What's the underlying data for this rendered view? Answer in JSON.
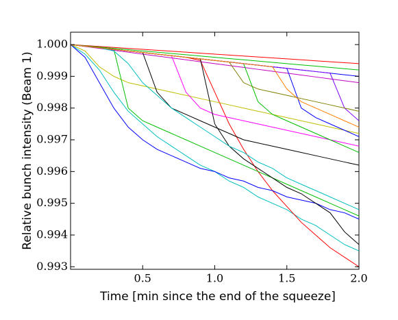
{
  "chart_data": {
    "type": "line",
    "xlabel": "Time [min since the end of the squeeze]",
    "ylabel": "Relative bunch intensity (Beam 1)",
    "x": [
      0,
      0.1,
      0.2,
      0.3,
      0.4,
      0.5,
      0.6,
      0.7,
      0.8,
      0.9,
      1.0,
      1.1,
      1.2,
      1.3,
      1.4,
      1.5,
      1.6,
      1.7,
      1.8,
      1.9,
      2.0
    ],
    "xlim": [
      0,
      2.0
    ],
    "xticks": [
      0.5,
      {
        "value": 1.0,
        "label": "1.0"
      },
      1.5,
      {
        "value": 2.0,
        "label": "2.0"
      }
    ],
    "ylim": [
      0.99292,
      1.00039
    ],
    "yticks": [
      0.993,
      0.994,
      0.995,
      0.996,
      0.997,
      0.998,
      0.999,
      {
        "value": 1.0,
        "label": "1.000"
      }
    ],
    "grid": false,
    "series": [
      {
        "color": "#ff0000",
        "values": [
          1,
          0.99997,
          0.99994,
          0.99991,
          0.99988,
          0.99985,
          0.99982,
          0.99979,
          0.99976,
          0.99973,
          0.9997,
          0.99967,
          0.99964,
          0.99961,
          0.99958,
          0.99955,
          0.99952,
          0.99949,
          0.99946,
          0.99943,
          0.9994
        ]
      },
      {
        "color": "#00bf00",
        "values": [
          1,
          0.99996,
          0.99992,
          0.99988,
          0.99984,
          0.9998,
          0.99976,
          0.99972,
          0.99968,
          0.99964,
          0.9996,
          0.99956,
          0.99952,
          0.99948,
          0.99944,
          0.9994,
          0.99936,
          0.99932,
          0.99928,
          0.99924,
          0.9992
        ]
      },
      {
        "color": "#0000ff",
        "values": [
          1,
          0.99995,
          0.9999,
          0.99985,
          0.9998,
          0.99975,
          0.9997,
          0.99965,
          0.9996,
          0.99955,
          0.9995,
          0.99945,
          0.9994,
          0.99935,
          0.9993,
          0.99925,
          0.9992,
          0.99915,
          0.9991,
          0.99905,
          0.999
        ]
      },
      {
        "color": "#bf00bf",
        "values": [
          1,
          0.99994,
          0.99988,
          0.99982,
          0.99976,
          0.9997,
          0.99964,
          0.99958,
          0.99952,
          0.99946,
          0.9994,
          0.99934,
          0.99928,
          0.99922,
          0.99916,
          0.9991,
          0.99904,
          0.99898,
          0.99892,
          0.99886,
          0.9988
        ]
      },
      {
        "color": "#00bfbf",
        "values": [
          1,
          0.9997,
          0.9992,
          0.9985,
          0.9979,
          0.9975,
          0.9971,
          0.9968,
          0.9965,
          0.9962,
          0.996,
          0.9957,
          0.9955,
          0.9952,
          0.995,
          0.9948,
          0.9945,
          0.9943,
          0.994,
          0.9937,
          0.9935
        ]
      },
      {
        "color": "#ff0000",
        "values": [
          1,
          0.99995,
          0.9999,
          0.99985,
          0.9998,
          0.99975,
          0.9997,
          0.99965,
          0.9996,
          0.9995,
          0.9985,
          0.9975,
          0.9967,
          0.996,
          0.9954,
          0.9949,
          0.9944,
          0.994,
          0.9936,
          0.9933,
          0.993
        ]
      },
      {
        "color": "#0000ff",
        "values": [
          1,
          0.9996,
          0.9988,
          0.998,
          0.9974,
          0.997,
          0.9967,
          0.9965,
          0.9963,
          0.9961,
          0.996,
          0.9958,
          0.9957,
          0.9955,
          0.9954,
          0.9952,
          0.9951,
          0.995,
          0.9948,
          0.9947,
          0.9945
        ]
      },
      {
        "color": "#bfbf00",
        "values": [
          1,
          0.9998,
          0.9993,
          0.999,
          0.9988,
          0.9987,
          0.9986,
          0.9985,
          0.9984,
          0.9983,
          0.9982,
          0.9981,
          0.998,
          0.9979,
          0.9978,
          0.9977,
          0.9976,
          0.9975,
          0.9974,
          0.9973,
          0.9972
        ]
      },
      {
        "color": "#00bf00",
        "values": [
          1,
          0.99995,
          0.9999,
          0.99985,
          0.998,
          0.9976,
          0.9974,
          0.9972,
          0.997,
          0.9968,
          0.9966,
          0.9964,
          0.9962,
          0.996,
          0.9958,
          0.9956,
          0.9954,
          0.9952,
          0.995,
          0.9948,
          0.9946
        ]
      },
      {
        "color": "#000000",
        "values": [
          1,
          0.99995,
          0.9999,
          0.99985,
          0.9998,
          0.99975,
          0.9985,
          0.998,
          0.9978,
          0.9976,
          0.9974,
          0.9972,
          0.997,
          0.9969,
          0.9968,
          0.9967,
          0.9966,
          0.9965,
          0.9964,
          0.9963,
          0.9962
        ]
      },
      {
        "color": "#ff00ff",
        "values": [
          1,
          0.99995,
          0.9999,
          0.99985,
          0.9998,
          0.99975,
          0.9997,
          0.99965,
          0.9985,
          0.998,
          0.9978,
          0.9977,
          0.9976,
          0.9975,
          0.9974,
          0.9973,
          0.9972,
          0.9971,
          0.997,
          0.9969,
          0.9968
        ]
      },
      {
        "color": "#000000",
        "values": [
          1,
          0.99995,
          0.9999,
          0.99985,
          0.9998,
          0.99975,
          0.9997,
          0.99965,
          0.9996,
          0.99955,
          0.9975,
          0.9968,
          0.9964,
          0.9961,
          0.9958,
          0.9955,
          0.9953,
          0.995,
          0.9947,
          0.9941,
          0.9937
        ]
      },
      {
        "color": "#00bf00",
        "values": [
          1,
          0.99995,
          0.9999,
          0.99985,
          0.9998,
          0.99975,
          0.9997,
          0.99965,
          0.9996,
          0.99955,
          0.9995,
          0.99945,
          0.9994,
          0.9982,
          0.9978,
          0.9976,
          0.9974,
          0.9972,
          0.997,
          0.9968,
          0.9966
        ]
      },
      {
        "color": "#0000ff",
        "values": [
          1,
          0.99995,
          0.9999,
          0.99985,
          0.9998,
          0.99975,
          0.9997,
          0.99965,
          0.9996,
          0.99955,
          0.9995,
          0.99945,
          0.9994,
          0.99935,
          0.9993,
          0.99925,
          0.998,
          0.9977,
          0.9975,
          0.9973,
          0.9971
        ]
      },
      {
        "color": "#7f00ff",
        "values": [
          1,
          0.99995,
          0.9999,
          0.99985,
          0.9998,
          0.99975,
          0.9997,
          0.99965,
          0.9996,
          0.99955,
          0.9995,
          0.99945,
          0.9994,
          0.99935,
          0.9993,
          0.99925,
          0.9992,
          0.99915,
          0.9991,
          0.998,
          0.9976
        ]
      },
      {
        "color": "#7f7f00",
        "values": [
          1,
          0.99995,
          0.9999,
          0.99985,
          0.9998,
          0.99975,
          0.9997,
          0.99965,
          0.9996,
          0.99955,
          0.9995,
          0.99945,
          0.9988,
          0.9986,
          0.9985,
          0.9984,
          0.9983,
          0.9982,
          0.9981,
          0.998,
          0.9979
        ]
      },
      {
        "color": "#00bfbf",
        "values": [
          1,
          0.99995,
          0.9999,
          0.9998,
          0.9994,
          0.9988,
          0.9984,
          0.998,
          0.9977,
          0.9974,
          0.9971,
          0.9968,
          0.9966,
          0.9963,
          0.9961,
          0.9958,
          0.9956,
          0.9954,
          0.9952,
          0.995,
          0.9948
        ]
      },
      {
        "color": "#ff7f00",
        "values": [
          1,
          0.99995,
          0.9999,
          0.99985,
          0.9998,
          0.99975,
          0.9997,
          0.99965,
          0.9996,
          0.99955,
          0.9995,
          0.99945,
          0.9994,
          0.99935,
          0.9993,
          0.9986,
          0.9982,
          0.998,
          0.9978,
          0.9976,
          0.9974
        ]
      }
    ]
  }
}
